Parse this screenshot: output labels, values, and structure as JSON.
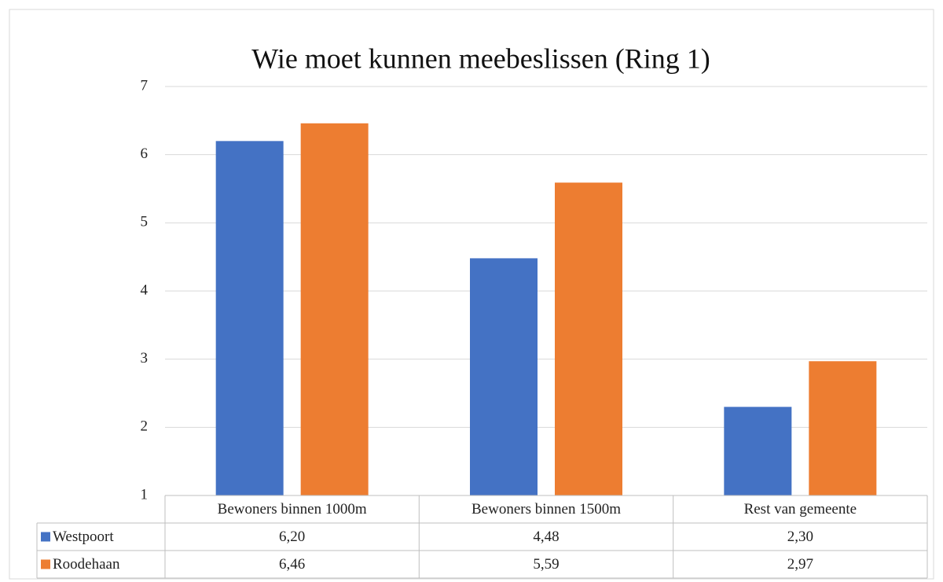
{
  "chart_data": {
    "type": "bar",
    "title": "Wie moet kunnen meebeslissen (Ring 1)",
    "categories": [
      "Bewoners binnen 1000m",
      "Bewoners binnen 1500m",
      "Rest van gemeente"
    ],
    "series": [
      {
        "name": "Westpoort",
        "color": "#4472c4",
        "values": [
          6.2,
          4.48,
          2.3
        ],
        "value_labels": [
          "6,20",
          "4,48",
          "2,30"
        ]
      },
      {
        "name": "Roodehaan",
        "color": "#ed7d31",
        "values": [
          6.46,
          5.59,
          2.97
        ],
        "value_labels": [
          "6,46",
          "5,59",
          "2,97"
        ]
      }
    ],
    "ylim": [
      1,
      7
    ],
    "yticks": [
      1,
      2,
      3,
      4,
      5,
      6,
      7
    ],
    "grid": true,
    "legend": "table"
  }
}
